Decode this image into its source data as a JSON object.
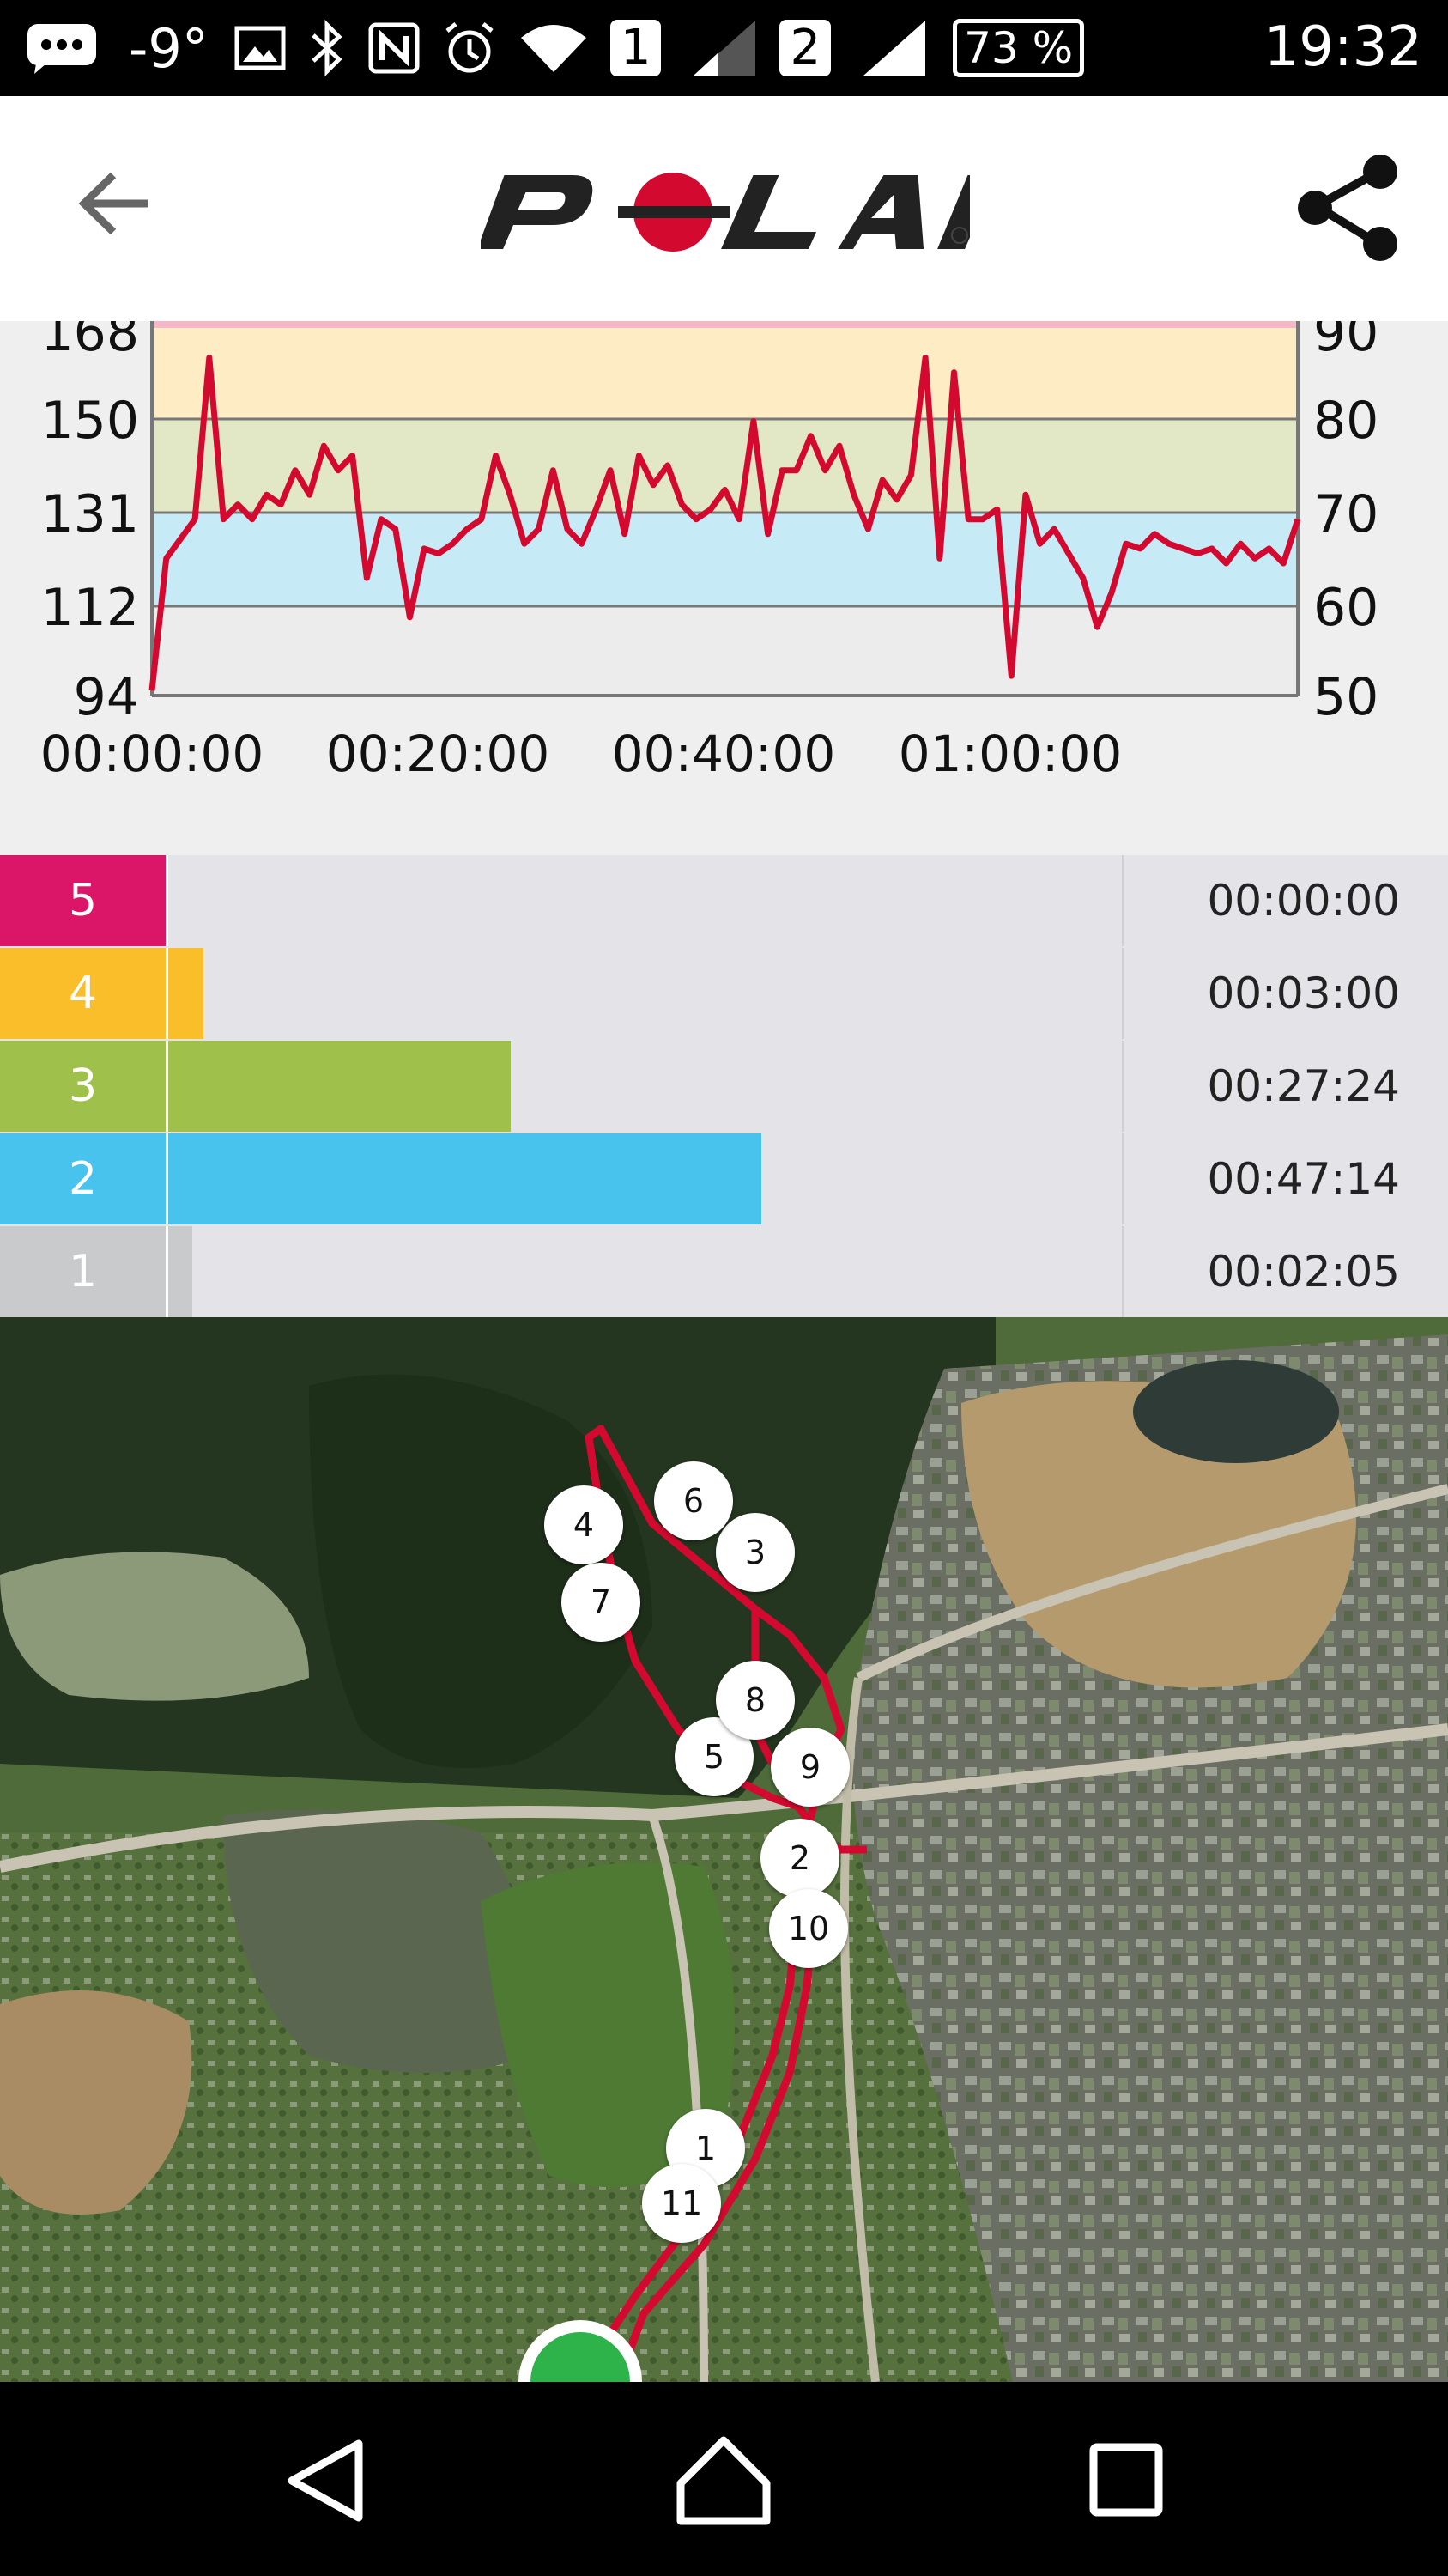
{
  "status_bar": {
    "temperature": "-9°",
    "sim1": "1",
    "sim2": "2",
    "battery": "73 %",
    "time": "19:32",
    "icons": [
      "chat-icon",
      "image-icon",
      "bluetooth-icon",
      "nfc-icon",
      "alarm-icon",
      "wifi-icon",
      "signal-icon",
      "signal-icon",
      "battery-icon"
    ]
  },
  "app_bar": {
    "logo_text": "POLAR",
    "back_icon": "arrow-left-icon",
    "share_icon": "share-icon"
  },
  "chart_data": {
    "type": "line",
    "title": "",
    "left_axis_ticks": [
      "168",
      "150",
      "131",
      "112",
      "94"
    ],
    "right_axis_ticks": [
      "90",
      "80",
      "70",
      "60",
      "50"
    ],
    "x_ticks": [
      "00:00:00",
      "00:20:00",
      "00:40:00",
      "01:00:00"
    ],
    "zones_colors": {
      "top": "#f5b8c8",
      "z4": "#fdecc4",
      "z3": "#e2e8c6",
      "z2": "#c6ebf7",
      "z1": "#ececec"
    },
    "series": [
      {
        "line_color": "#d4092f",
        "x_min": [
          0,
          1,
          2,
          3,
          4,
          5,
          6,
          7,
          8,
          9,
          10,
          11,
          12,
          13,
          14,
          15,
          16,
          17,
          18,
          19,
          20,
          21,
          22,
          23,
          24,
          25,
          26,
          27,
          28,
          29,
          30,
          31,
          32,
          33,
          34,
          35,
          36,
          37,
          38,
          39,
          40,
          41,
          42,
          43,
          44,
          45,
          46,
          47,
          48,
          49,
          50,
          51,
          52,
          53,
          54,
          55,
          56,
          57,
          58,
          59,
          60,
          61,
          62,
          63,
          64,
          65,
          66,
          67,
          68,
          69,
          70,
          71,
          72,
          73,
          74,
          75,
          76,
          77,
          78,
          79,
          80
        ],
        "values": [
          95,
          122,
          126,
          130,
          163,
          130,
          133,
          130,
          135,
          133,
          140,
          135,
          145,
          140,
          143,
          118,
          130,
          128,
          110,
          124,
          123,
          125,
          128,
          130,
          143,
          135,
          125,
          128,
          140,
          128,
          125,
          132,
          140,
          127,
          143,
          137,
          141,
          133,
          130,
          132,
          136,
          130,
          150,
          127,
          140,
          140,
          147,
          140,
          145,
          135,
          128,
          138,
          134,
          139,
          163,
          122,
          160,
          130,
          130,
          132,
          98,
          135,
          125,
          128,
          123,
          118,
          108,
          115,
          125,
          124,
          127,
          125,
          124,
          123,
          124,
          121,
          125,
          122,
          124,
          121,
          130
        ]
      }
    ]
  },
  "zones": [
    {
      "label": "5",
      "time": "00:00:00",
      "color": "#db1567",
      "fill": 0.0
    },
    {
      "label": "4",
      "time": "00:03:00",
      "color": "#fbbe2b",
      "fill": 0.063
    },
    {
      "label": "3",
      "time": "00:27:24",
      "color": "#9fc04b",
      "fill": 0.579
    },
    {
      "label": "2",
      "time": "00:47:14",
      "color": "#47c3ee",
      "fill": 1.0
    },
    {
      "label": "1",
      "time": "00:02:05",
      "color": "#c8cacc",
      "fill": 0.044
    }
  ],
  "map": {
    "markers": [
      "1",
      "2",
      "3",
      "4",
      "5",
      "6",
      "7",
      "8",
      "9",
      "10",
      "11"
    ],
    "route_color": "#d4092f"
  },
  "nav_bar": {
    "back_icon": "triangle-back-icon",
    "home_icon": "home-icon",
    "recents_icon": "square-recents-icon"
  }
}
